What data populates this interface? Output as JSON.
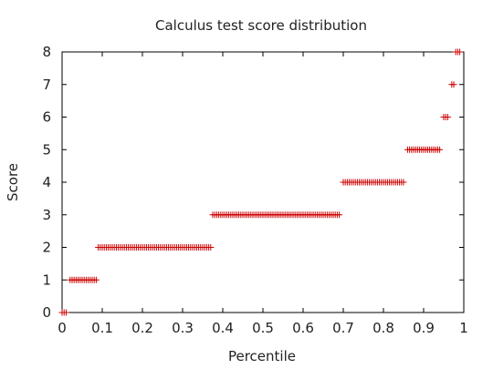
{
  "chart_data": {
    "type": "scatter",
    "title": "Calculus test score distribution",
    "xlabel": "Percentile",
    "ylabel": "Score",
    "xlim": [
      0,
      1
    ],
    "ylim": [
      0,
      8
    ],
    "xticks": [
      "0",
      "0.1",
      "0.2",
      "0.3",
      "0.4",
      "0.5",
      "0.6",
      "0.7",
      "0.8",
      "0.9",
      "1"
    ],
    "yticks": [
      "0",
      "1",
      "2",
      "3",
      "4",
      "5",
      "6",
      "7",
      "8"
    ],
    "marker": "+",
    "marker_color": "#cc0000",
    "grid": false,
    "segments": [
      {
        "score": 0,
        "x_start": 0.0,
        "x_end": 0.01,
        "step": 0.005
      },
      {
        "score": 1,
        "x_start": 0.02,
        "x_end": 0.085,
        "step": 0.005
      },
      {
        "score": 2,
        "x_start": 0.09,
        "x_end": 0.37,
        "step": 0.005
      },
      {
        "score": 3,
        "x_start": 0.375,
        "x_end": 0.69,
        "step": 0.005
      },
      {
        "score": 4,
        "x_start": 0.7,
        "x_end": 0.85,
        "step": 0.005
      },
      {
        "score": 5,
        "x_start": 0.86,
        "x_end": 0.94,
        "step": 0.005
      },
      {
        "score": 6,
        "x_start": 0.95,
        "x_end": 0.96,
        "step": 0.005
      },
      {
        "score": 7,
        "x_start": 0.97,
        "x_end": 0.975,
        "step": 0.005
      },
      {
        "score": 8,
        "x_start": 0.98,
        "x_end": 0.99,
        "step": 0.005
      }
    ]
  }
}
